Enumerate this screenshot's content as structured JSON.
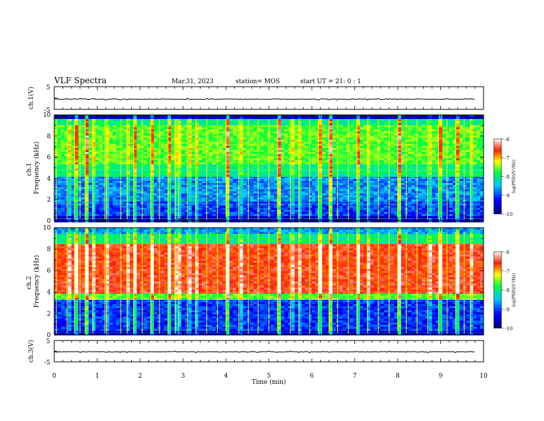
{
  "header": {
    "title": "VLF Spectra",
    "date": "Mar.31, 2023",
    "station": "station= MOS",
    "start": "start  UT =   21: 0  : 1"
  },
  "chart_data": [
    {
      "type": "line",
      "name": "ch1-waveform",
      "ylabel": "ch.1(V)",
      "yticks": [
        "5",
        "-5"
      ],
      "ylim": [
        -5,
        5
      ],
      "xlim": [
        0,
        10
      ],
      "baseline": -0.5
    },
    {
      "type": "heatmap",
      "name": "ch1-spectrogram",
      "ylabel_top": "ch.1",
      "ylabel": "Frequency (kHz)",
      "yticks": [
        "0",
        "2",
        "4",
        "6",
        "8",
        "10"
      ],
      "ylim": [
        0,
        10
      ],
      "xlim": [
        0,
        10
      ],
      "colorbar": {
        "ticks": [
          "-6",
          "-7",
          "-8",
          "-9",
          "-10"
        ],
        "label": "log(PSD)(V²/Hz)",
        "range": [
          -10,
          -6
        ]
      },
      "description_levels": {
        "low_band_kHz": [
          0,
          4
        ],
        "mid_band_kHz": [
          4,
          9
        ],
        "top_band_kHz": [
          9,
          10
        ]
      }
    },
    {
      "type": "heatmap",
      "name": "ch2-spectrogram",
      "ylabel_top": "ch.2",
      "ylabel": "Frequency (kHz)",
      "yticks": [
        "0",
        "2",
        "4",
        "6",
        "8",
        "10"
      ],
      "ylim": [
        0,
        10
      ],
      "xlim": [
        0,
        10
      ],
      "colorbar": {
        "ticks": [
          "-6",
          "-7",
          "-8",
          "-9",
          "-10"
        ],
        "label": "log(PSD)(V²/Hz)",
        "range": [
          -10,
          -6
        ]
      },
      "description_levels": {
        "low_band_kHz": [
          0,
          3.5
        ],
        "mid_band_kHz": [
          3.5,
          8.5
        ],
        "top_band_kHz": [
          8.5,
          10
        ]
      }
    },
    {
      "type": "line",
      "name": "ch3-waveform",
      "ylabel": "ch.3(V)",
      "yticks": [
        "5",
        "-5"
      ],
      "ylim": [
        -5,
        5
      ],
      "xlim": [
        0,
        10
      ],
      "baseline": -0.3
    }
  ],
  "xaxis": {
    "label": "Time (min)",
    "ticks": [
      "0",
      "1",
      "2",
      "3",
      "4",
      "5",
      "6",
      "7",
      "8",
      "9",
      "10"
    ]
  },
  "sferic_times_min": [
    0.05,
    0.3,
    0.47,
    0.6,
    0.72,
    0.9,
    1.18,
    1.22,
    1.55,
    1.7,
    1.85,
    2.05,
    2.25,
    2.45,
    2.65,
    2.82,
    2.9,
    3.1,
    3.3,
    3.55,
    3.8,
    4.0,
    4.3,
    4.52,
    4.75,
    5.0,
    5.2,
    5.5,
    5.7,
    5.95,
    6.15,
    6.4,
    6.6,
    6.85,
    7.05,
    7.3,
    7.55,
    7.8,
    8.0,
    8.2,
    8.45,
    8.7,
    8.95,
    9.15,
    9.35,
    9.55,
    9.7
  ]
}
